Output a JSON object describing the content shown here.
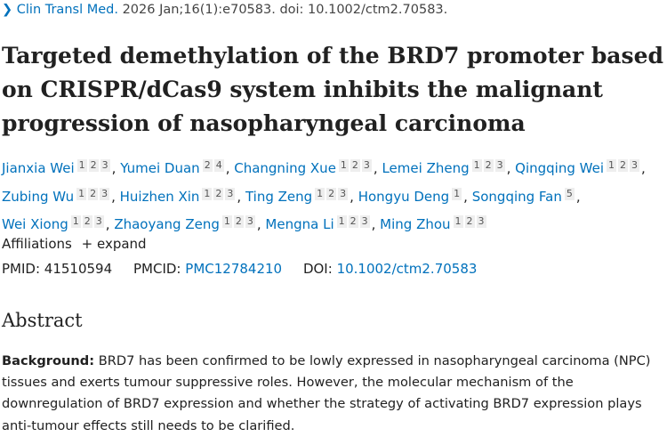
{
  "citation": {
    "journal": "Clin Transl Med.",
    "details": "2026 Jan;16(1):e70583. doi: 10.1002/ctm2.70583."
  },
  "title": "Targeted demethylation of the BRD7 promoter based on CRISPR/dCas9 system inhibits the malignant progression of nasopharyngeal carcinoma",
  "authors": [
    [
      {
        "name": "Jianxia Wei",
        "aff": [
          "1",
          "2",
          "3"
        ]
      },
      {
        "name": "Yumei Duan",
        "aff": [
          "2",
          "4"
        ]
      },
      {
        "name": "Changning Xue",
        "aff": [
          "1",
          "2",
          "3"
        ]
      },
      {
        "name": "Lemei Zheng",
        "aff": [
          "1",
          "2",
          "3"
        ]
      },
      {
        "name": "Qingqing Wei",
        "aff": [
          "1",
          "2",
          "3"
        ]
      }
    ],
    [
      {
        "name": "Zubing Wu",
        "aff": [
          "1",
          "2",
          "3"
        ]
      },
      {
        "name": "Huizhen Xin",
        "aff": [
          "1",
          "2",
          "3"
        ]
      },
      {
        "name": "Ting Zeng",
        "aff": [
          "1",
          "2",
          "3"
        ]
      },
      {
        "name": "Hongyu Deng",
        "aff": [
          "1"
        ]
      },
      {
        "name": "Songqing Fan",
        "aff": [
          "5"
        ]
      }
    ],
    [
      {
        "name": "Wei Xiong",
        "aff": [
          "1",
          "2",
          "3"
        ]
      },
      {
        "name": "Zhaoyang Zeng",
        "aff": [
          "1",
          "2",
          "3"
        ]
      },
      {
        "name": "Mengna Li",
        "aff": [
          "1",
          "2",
          "3"
        ]
      },
      {
        "name": "Ming Zhou",
        "aff": [
          "1",
          "2",
          "3"
        ]
      }
    ]
  ],
  "affiliations": {
    "label": "Affiliations",
    "expand": "expand"
  },
  "ids": {
    "pmid_label": "PMID:",
    "pmid": "41510594",
    "pmcid_label": "PMCID:",
    "pmcid": "PMC12784210",
    "doi_label": "DOI:",
    "doi": "10.1002/ctm2.70583"
  },
  "abstract": {
    "heading": "Abstract",
    "background_label": "Background:",
    "background_text": " BRD7 has been confirmed to be lowly expressed in nasopharyngeal carcinoma (NPC) tissues and exerts tumour suppressive roles. However, the molecular mechanism of the downregulation of BRD7 expression and whether the strategy of activating BRD7 expression plays anti-tumour effects still needs to be clarified."
  }
}
